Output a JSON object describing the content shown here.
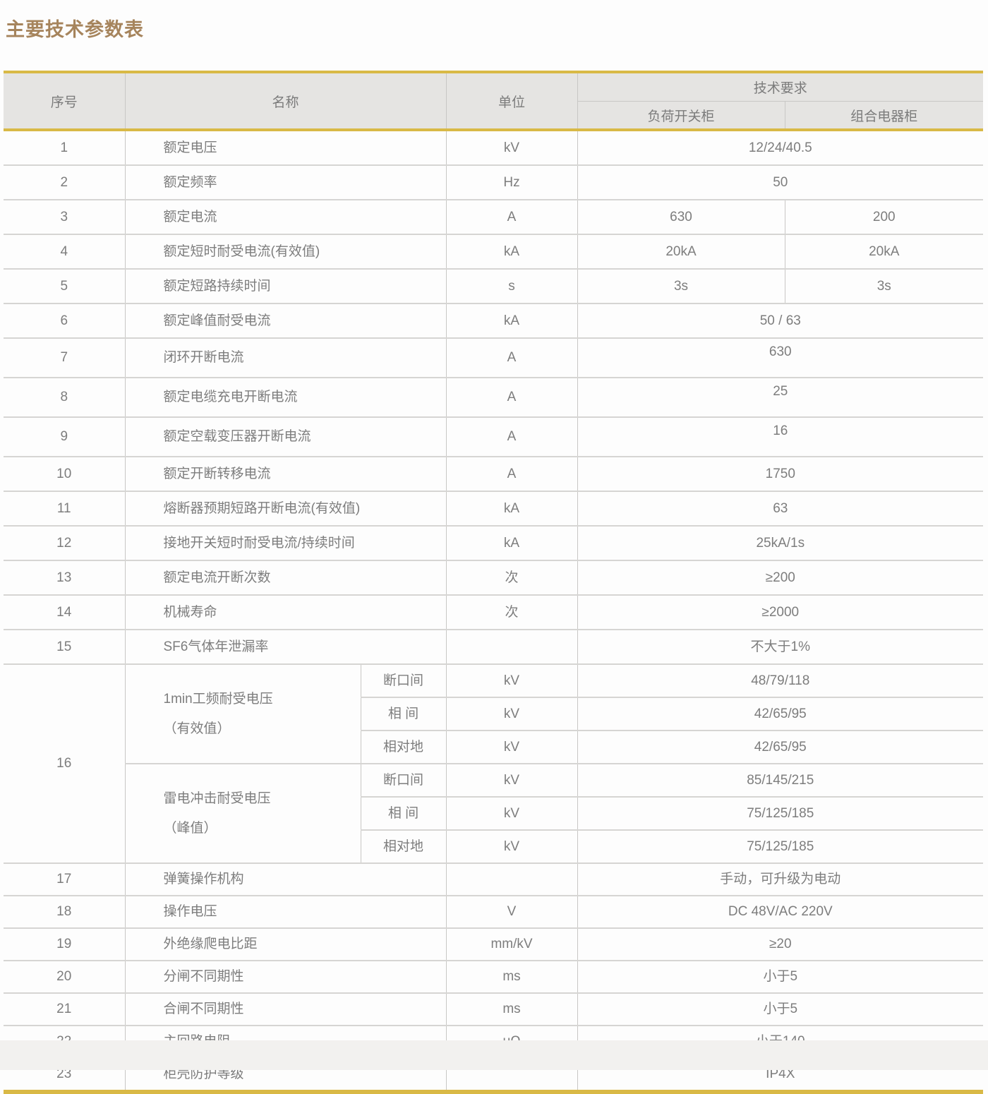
{
  "page": {
    "title": "主要技术参数表"
  },
  "colors": {
    "accent_gold": "#d9b946",
    "title_brown": "#a6845c",
    "header_bg": "#e5e4e2",
    "text_gray": "#7d7d7d"
  },
  "table": {
    "header": {
      "col_no": "序号",
      "col_name": "名称",
      "col_unit": "单位",
      "col_tech": "技术要求",
      "col_load": "负荷开关柜",
      "col_combo": "组合电器柜"
    },
    "rows": [
      {
        "no": "1",
        "name": "额定电压",
        "unit": "kV",
        "value": "12/24/40.5"
      },
      {
        "no": "2",
        "name": "额定频率",
        "unit": "Hz",
        "value": "50"
      },
      {
        "no": "3",
        "name": "额定电流",
        "unit": "A",
        "values": [
          "630",
          "200"
        ]
      },
      {
        "no": "4",
        "name": "额定短时耐受电流(有效值)",
        "unit": "kA",
        "values": [
          "20kA",
          "20kA"
        ]
      },
      {
        "no": "5",
        "name": "额定短路持续时间",
        "unit": "s",
        "values": [
          "3s",
          "3s"
        ]
      },
      {
        "no": "6",
        "name": "额定峰值耐受电流",
        "unit": "kA",
        "value": "50 / 63"
      },
      {
        "no": "7",
        "name": "闭环开断电流",
        "unit": "A",
        "value": "630",
        "raised": true
      },
      {
        "no": "8",
        "name": "额定电缆充电开断电流",
        "unit": "A",
        "value": "25",
        "raised": true
      },
      {
        "no": "9",
        "name": "额定空载变压器开断电流",
        "unit": "A",
        "value": "16",
        "raised": true
      },
      {
        "no": "10",
        "name": "额定开断转移电流",
        "unit": "A",
        "value": "1750"
      },
      {
        "no": "11",
        "name": "熔断器预期短路开断电流(有效值)",
        "unit": "kA",
        "value": "63"
      },
      {
        "no": "12",
        "name": "接地开关短时耐受电流/持续时间",
        "unit": "kA",
        "value": "25kA/1s"
      },
      {
        "no": "13",
        "name": "额定电流开断次数",
        "unit": "次",
        "value": "≥200"
      },
      {
        "no": "14",
        "name": "机械寿命",
        "unit": "次",
        "value": "≥2000"
      },
      {
        "no": "15",
        "name": "SF6气体年泄漏率",
        "unit": "",
        "value": "不大于1%"
      },
      {
        "no": "16",
        "groups": [
          {
            "label_line1": "1min工频耐受电压",
            "label_line2": "（有效值）",
            "subrows": [
              {
                "item": "断口间",
                "unit": "kV",
                "value": "48/79/118"
              },
              {
                "item": "相 间",
                "unit": "kV",
                "value": "42/65/95"
              },
              {
                "item": "相对地",
                "unit": "kV",
                "value": "42/65/95"
              }
            ]
          },
          {
            "label_line1": "雷电冲击耐受电压",
            "label_line2": "（峰值）",
            "subrows": [
              {
                "item": "断口间",
                "unit": "kV",
                "value": "85/145/215"
              },
              {
                "item": "相 间",
                "unit": "kV",
                "value": "75/125/185"
              },
              {
                "item": "相对地",
                "unit": "kV",
                "value": "75/125/185"
              }
            ]
          }
        ]
      },
      {
        "no": "17",
        "name": "弹簧操作机构",
        "unit": "",
        "value": "手动，可升级为电动"
      },
      {
        "no": "18",
        "name": "操作电压",
        "unit": "V",
        "value": "DC 48V/AC 220V"
      },
      {
        "no": "19",
        "name": "外绝缘爬电比距",
        "unit": "mm/kV",
        "value": "≥20"
      },
      {
        "no": "20",
        "name": "分闸不同期性",
        "unit": "ms",
        "value": "小于5"
      },
      {
        "no": "21",
        "name": "合闸不同期性",
        "unit": "ms",
        "value": "小于5"
      },
      {
        "no": "22",
        "name": "主回路电阻",
        "unit": "μΩ",
        "value": "小于140"
      },
      {
        "no": "23",
        "name": "柜壳防护等级",
        "unit": "",
        "value": "IP4X"
      }
    ]
  }
}
